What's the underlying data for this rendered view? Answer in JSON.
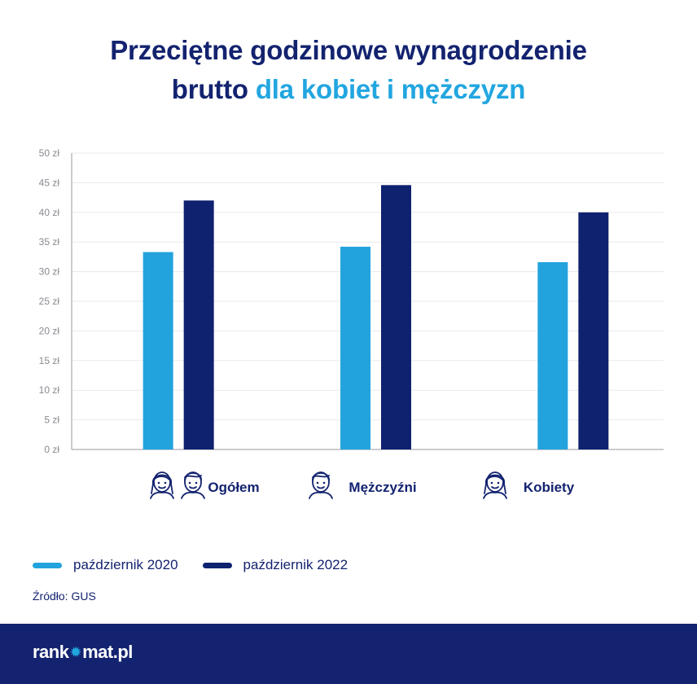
{
  "title": {
    "line1": "Przeciętne godzinowe wynagrodzenie",
    "line2_plain": "brutto",
    "line2_accent": "dla kobiet i mężczyzn"
  },
  "colors": {
    "navy": "#13236f",
    "accent": "#22a6e0",
    "series_2020": "#22a3de",
    "series_2022": "#0e2270"
  },
  "chart_data": {
    "type": "bar",
    "categories": [
      "Ogółem",
      "Mężczyźni",
      "Kobiety"
    ],
    "category_icons": [
      [
        "woman-face-icon",
        "man-face-icon"
      ],
      [
        "man-face-icon"
      ],
      [
        "woman-face-icon"
      ]
    ],
    "series": [
      {
        "name": "październik 2020",
        "values": [
          33.3,
          34.2,
          31.6
        ]
      },
      {
        "name": "październik 2022",
        "values": [
          42.0,
          44.6,
          40.0
        ]
      }
    ],
    "ylim": [
      0,
      50
    ],
    "yticks": [
      0,
      5,
      10,
      15,
      20,
      25,
      30,
      35,
      40,
      45,
      50
    ],
    "ytick_labels": [
      "0 zł",
      "5 zł",
      "10 zł",
      "15 zł",
      "20 zł",
      "25 zł",
      "30 zł",
      "35 zł",
      "40 zł",
      "45 zł",
      "50 zł"
    ],
    "grid": true,
    "legend_position": "bottom-left"
  },
  "source": "Źródło: GUS",
  "footer": {
    "logo_left": "rank",
    "logo_right": "mat.pl",
    "logo_icon": "star-icon"
  }
}
